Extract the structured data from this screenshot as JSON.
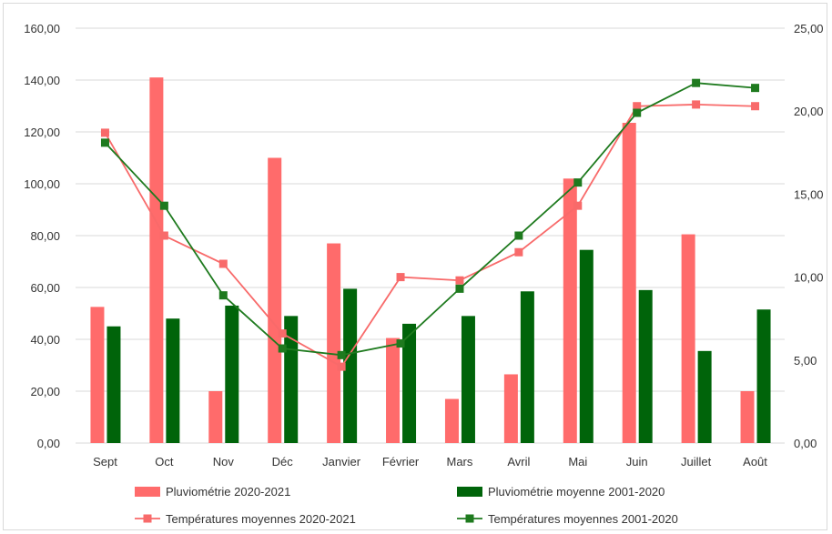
{
  "chart_data": {
    "type": "bar",
    "categories": [
      "Sept",
      "Oct",
      "Nov",
      "Déc",
      "Janvier",
      "Février",
      "Mars",
      "Avril",
      "Mai",
      "Juin",
      "Juillet",
      "Août"
    ],
    "title": "",
    "xlabel": "",
    "ylabel": "",
    "y_left": {
      "lim": [
        0,
        160
      ],
      "ticks": [
        "0,00",
        "20,00",
        "40,00",
        "60,00",
        "80,00",
        "100,00",
        "120,00",
        "140,00",
        "160,00"
      ],
      "tick_values": [
        0,
        20,
        40,
        60,
        80,
        100,
        120,
        140,
        160
      ]
    },
    "y_right": {
      "lim": [
        0,
        25
      ],
      "ticks": [
        "0,00",
        "5,00",
        "10,00",
        "15,00",
        "20,00",
        "25,00"
      ],
      "tick_values": [
        0,
        5,
        10,
        15,
        20,
        25
      ]
    },
    "grid": "horizontal",
    "legend_position": "bottom",
    "series": [
      {
        "name": "Pluviométrie 2020-2021",
        "kind": "bar",
        "axis": "left",
        "color": "#ff6b6b",
        "values": [
          52.5,
          141,
          20,
          110,
          77,
          40.5,
          17,
          26.5,
          102,
          123.5,
          80.5,
          20
        ]
      },
      {
        "name": "Pluviométrie moyenne 2001-2020",
        "kind": "bar",
        "axis": "left",
        "color": "#00640a",
        "values": [
          45,
          48,
          53,
          49,
          59.5,
          46,
          49,
          58.5,
          74.5,
          59,
          35.5,
          51.5
        ]
      },
      {
        "name": "Températures moyennes 2020-2021",
        "kind": "line",
        "axis": "right",
        "color": "#f86a6a",
        "values": [
          18.7,
          12.5,
          10.8,
          6.6,
          4.6,
          10.0,
          9.8,
          11.5,
          14.3,
          20.3,
          20.4,
          20.3
        ]
      },
      {
        "name": "Températures moyennes 2001-2020",
        "kind": "line",
        "axis": "right",
        "color": "#1e7a1e",
        "values": [
          18.1,
          14.3,
          8.9,
          5.7,
          5.3,
          6.0,
          9.3,
          12.5,
          15.7,
          19.9,
          21.7,
          21.4
        ]
      }
    ]
  }
}
